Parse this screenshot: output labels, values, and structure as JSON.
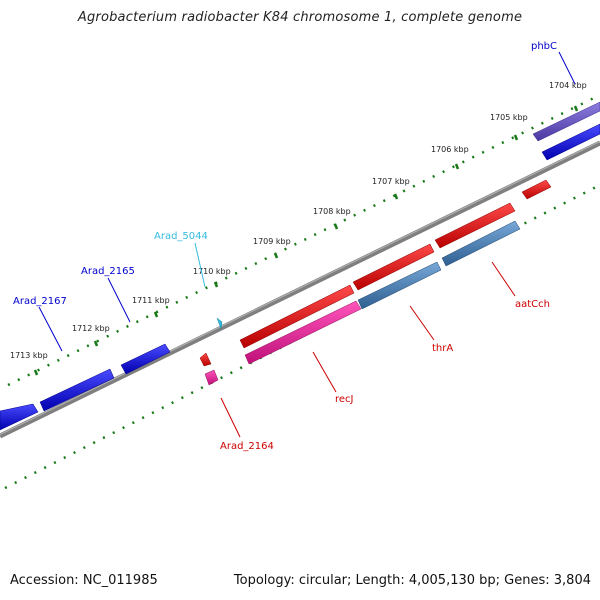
{
  "title": "Agrobacterium radiobacter K84 chromosome 1, complete genome",
  "footer": {
    "accession": "Accession: NC_011985",
    "summary": "Topology: circular; Length: 4,005,130 bp; Genes: 3,804"
  },
  "ticks": [
    {
      "label": "1704 kbp"
    },
    {
      "label": "1705 kbp"
    },
    {
      "label": "1706 kbp"
    },
    {
      "label": "1707 kbp"
    },
    {
      "label": "1708 kbp"
    },
    {
      "label": "1709 kbp"
    },
    {
      "label": "1710 kbp"
    },
    {
      "label": "1711 kbp"
    },
    {
      "label": "1712 kbp"
    },
    {
      "label": "1713 kbp"
    }
  ],
  "gene_labels": [
    {
      "name": "phbC",
      "color": "#0000cc"
    },
    {
      "name": "Arad_5044",
      "color": "#33bbdd"
    },
    {
      "name": "Arad_2165",
      "color": "#0000cc"
    },
    {
      "name": "Arad_2167",
      "color": "#0000cc"
    },
    {
      "name": "aatCch",
      "color": "#cc0000"
    },
    {
      "name": "thrA",
      "color": "#cc0000"
    },
    {
      "name": "recJ",
      "color": "#cc0000"
    },
    {
      "name": "Arad_2164",
      "color": "#cc0000"
    }
  ],
  "colors": {
    "backbone": "#7f7f7f",
    "tick_dots": "#1a7a1a",
    "gene_blue": "#0000ee",
    "gene_purple": "#6a55c8",
    "gene_red": "#ee0000",
    "gene_pink": "#ee2299",
    "gene_steel": "#4a7fb5",
    "gene_cyan": "#33bbdd"
  }
}
